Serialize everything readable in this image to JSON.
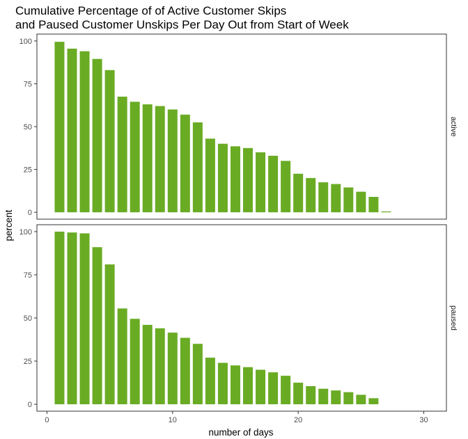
{
  "chart_data": {
    "type": "bar",
    "title_lines": [
      "Cumulative Percentage of of Active Customer Skips",
      "and Paused Customer Unskips Per Day Out from Start of Week"
    ],
    "xlabel": "number of days",
    "ylabel": "percent",
    "xlim": [
      -0.8,
      31.8
    ],
    "ylim": [
      -4,
      104
    ],
    "x_ticks": [
      0,
      10,
      20,
      30
    ],
    "y_ticks": [
      0,
      25,
      50,
      75,
      100
    ],
    "bar_color": "#6AAB24",
    "grid": false,
    "facets": [
      {
        "label": "active",
        "x": [
          1,
          2,
          3,
          4,
          5,
          6,
          7,
          8,
          9,
          10,
          11,
          12,
          13,
          14,
          15,
          16,
          17,
          18,
          19,
          20,
          21,
          22,
          23,
          24,
          25,
          26,
          27
        ],
        "values": [
          99.5,
          95.5,
          94,
          89.5,
          83,
          67.5,
          64.5,
          63,
          62,
          60,
          57,
          52.5,
          43,
          40,
          38.5,
          37.5,
          35,
          33,
          30,
          22.5,
          20,
          17.5,
          16.5,
          14.5,
          12,
          9,
          0.5
        ]
      },
      {
        "label": "paused",
        "x": [
          1,
          2,
          3,
          4,
          5,
          6,
          7,
          8,
          9,
          10,
          11,
          12,
          13,
          14,
          15,
          16,
          17,
          18,
          19,
          20,
          21,
          22,
          23,
          24,
          25,
          26
        ],
        "values": [
          100,
          99.5,
          99,
          91,
          81,
          55.5,
          49.5,
          46,
          44,
          41.5,
          38.5,
          35,
          27,
          24,
          22.5,
          21.5,
          20,
          18.5,
          16.5,
          12.5,
          10.5,
          9,
          8,
          7,
          5.5,
          3.5
        ]
      }
    ]
  }
}
